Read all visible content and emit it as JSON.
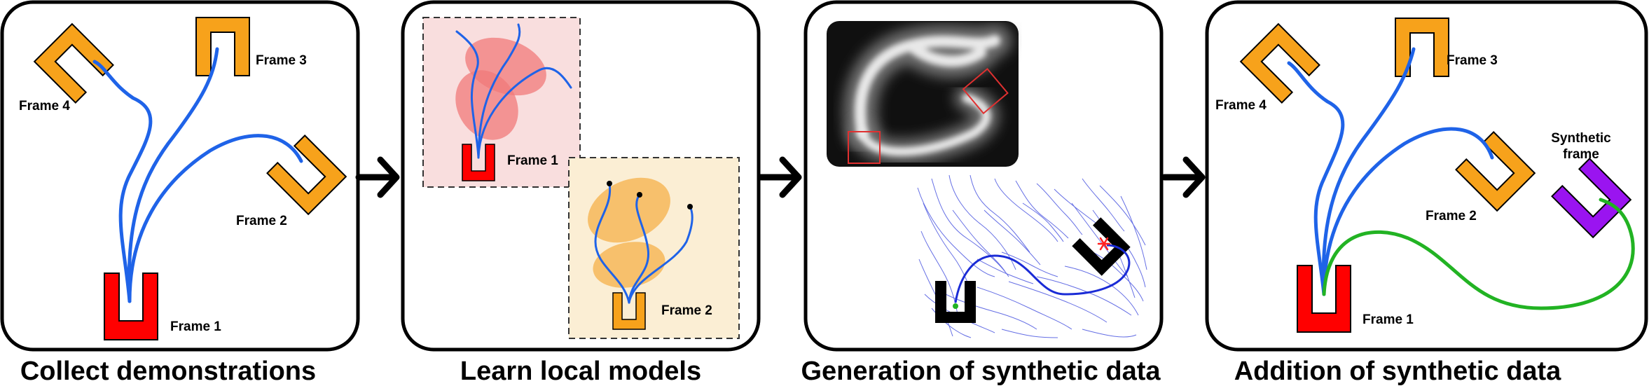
{
  "panels": [
    {
      "caption": "Collect demonstrations",
      "labels": {
        "frame1": "Frame 1",
        "frame2": "Frame 2",
        "frame3": "Frame 3",
        "frame4": "Frame 4"
      }
    },
    {
      "caption": "Learn local models",
      "labels": {
        "frame1": "Frame 1",
        "frame2": "Frame 2"
      }
    },
    {
      "caption": "Generation of synthetic data"
    },
    {
      "caption": "Addition of synthetic data",
      "labels": {
        "frame1": "Frame 1",
        "frame2": "Frame 2",
        "frame3": "Frame 3",
        "frame4": "Frame 4",
        "synthetic_line1": "Synthetic",
        "synthetic_line2": "frame"
      }
    }
  ],
  "colors": {
    "panel_border": "#000000",
    "frame_red": "#ff0000",
    "frame_orange": "#f7a21b",
    "frame_purple": "#9a14f0",
    "frame_black": "#000000",
    "trajectory_blue": "#1f63e8",
    "synthetic_green": "#22b323",
    "model_pink": "#f07a7a",
    "model_orange": "#f5b04a",
    "box_pink_bg": "#f9dede",
    "box_orange_bg": "#fbeed4",
    "field_lines": "#4a55e0",
    "heatmap_bg": "#101010"
  },
  "icons": [
    "arrow-right-icon",
    "u-frame-icon",
    "attractor-star-icon"
  ]
}
